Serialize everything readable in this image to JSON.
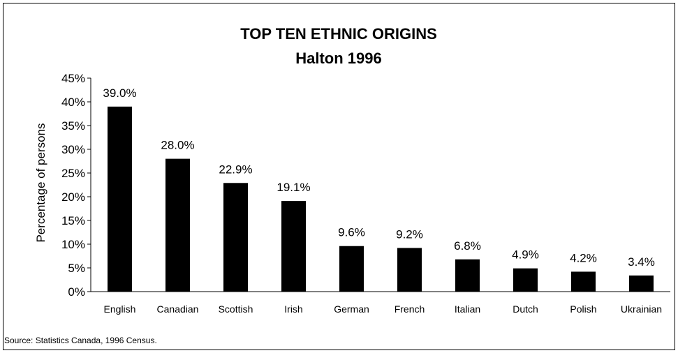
{
  "chart_data": {
    "type": "bar",
    "title": "TOP TEN ETHNIC ORIGINS",
    "subtitle": "Halton 1996",
    "ylabel": "Percentage of persons",
    "xlabel": "",
    "categories": [
      "English",
      "Canadian",
      "Scottish",
      "Irish",
      "German",
      "French",
      "Italian",
      "Dutch",
      "Polish",
      "Ukrainian"
    ],
    "values": [
      39.0,
      28.0,
      22.9,
      19.1,
      9.6,
      9.2,
      6.8,
      4.9,
      4.2,
      3.4
    ],
    "value_labels": [
      "39.0%",
      "28.0%",
      "22.9%",
      "19.1%",
      "9.6%",
      "9.2%",
      "6.8%",
      "4.9%",
      "4.2%",
      "3.4%"
    ],
    "ylim": [
      0,
      45
    ],
    "yticks": [
      "0%",
      "5%",
      "10%",
      "15%",
      "20%",
      "25%",
      "30%",
      "35%",
      "40%",
      "45%"
    ],
    "grid": false,
    "bar_color": "#000000",
    "source": "Source: Statistics Canada, 1996 Census."
  }
}
